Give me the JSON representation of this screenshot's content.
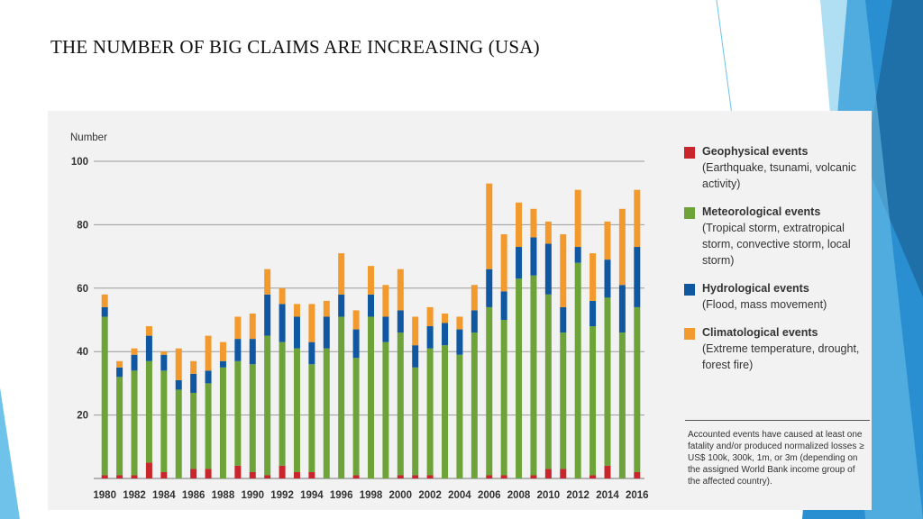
{
  "slide": {
    "title": "THE NUMBER OF BIG CLAIMS ARE INCREASING (USA)",
    "accent_colors": [
      "#1f6fa8",
      "#2a8fd0",
      "#6fc3ea",
      "#a9dcf3"
    ]
  },
  "chart_data": {
    "type": "bar",
    "stacked": true,
    "ylabel": "Number",
    "ylim": [
      0,
      100
    ],
    "yticks": [
      20,
      40,
      60,
      80,
      100
    ],
    "xtick_labels": [
      "1980",
      "1982",
      "1984",
      "1986",
      "1988",
      "1990",
      "1992",
      "1994",
      "1996",
      "1998",
      "2000",
      "2002",
      "2004",
      "2006",
      "2008",
      "2010",
      "2012",
      "2014",
      "2016"
    ],
    "categories": [
      "1980",
      "1981",
      "1982",
      "1983",
      "1984",
      "1985",
      "1986",
      "1987",
      "1988",
      "1989",
      "1990",
      "1991",
      "1992",
      "1993",
      "1994",
      "1995",
      "1996",
      "1997",
      "1998",
      "1999",
      "2000",
      "2001",
      "2002",
      "2003",
      "2004",
      "2005",
      "2006",
      "2007",
      "2008",
      "2009",
      "2010",
      "2011",
      "2012",
      "2013",
      "2014",
      "2015",
      "2016"
    ],
    "series": [
      {
        "name": "Geophysical events",
        "color": "#c8252c",
        "values": [
          1,
          1,
          1,
          5,
          2,
          0,
          3,
          3,
          0,
          4,
          2,
          1,
          4,
          2,
          2,
          0,
          0,
          1,
          0,
          0,
          1,
          1,
          1,
          0,
          0,
          0,
          1,
          1,
          0,
          1,
          3,
          3,
          0,
          1,
          4,
          0,
          2
        ]
      },
      {
        "name": "Meteorological events",
        "color": "#6ea33a",
        "values": [
          50,
          31,
          33,
          32,
          32,
          28,
          24,
          27,
          35,
          33,
          34,
          44,
          39,
          39,
          34,
          41,
          51,
          37,
          51,
          43,
          45,
          34,
          40,
          42,
          39,
          46,
          53,
          49,
          63,
          63,
          55,
          43,
          68,
          47,
          53,
          46,
          52
        ]
      },
      {
        "name": "Hydrological events",
        "color": "#0f57a0",
        "values": [
          3,
          3,
          5,
          8,
          5,
          3,
          6,
          4,
          2,
          7,
          8,
          13,
          12,
          10,
          7,
          10,
          7,
          9,
          7,
          8,
          7,
          7,
          7,
          7,
          8,
          7,
          12,
          9,
          10,
          12,
          16,
          8,
          5,
          8,
          12,
          15,
          19
        ]
      },
      {
        "name": "Climatological events",
        "color": "#f29a2e",
        "values": [
          4,
          2,
          2,
          3,
          1,
          10,
          4,
          11,
          6,
          7,
          8,
          8,
          5,
          4,
          12,
          5,
          13,
          6,
          9,
          10,
          13,
          9,
          6,
          3,
          4,
          8,
          27,
          18,
          14,
          9,
          7,
          23,
          18,
          15,
          12,
          24,
          18
        ]
      }
    ],
    "legend": [
      {
        "title": "Geophysical events",
        "desc": "(Earthquake, tsunami, volcanic activity)"
      },
      {
        "title": "Meteorological events",
        "desc": "(Tropical storm, extratropical storm, convective storm, local storm)"
      },
      {
        "title": "Hydrological events",
        "desc": "(Flood, mass movement)"
      },
      {
        "title": "Climatological events",
        "desc": "(Extreme temperature, drought, forest fire)"
      }
    ],
    "note": "Accounted events have caused at least one fatality and/or produced normalized losses ≥ US$ 100k, 300k, 1m, or 3m (depending on the assigned World Bank income group of the affected country)."
  }
}
